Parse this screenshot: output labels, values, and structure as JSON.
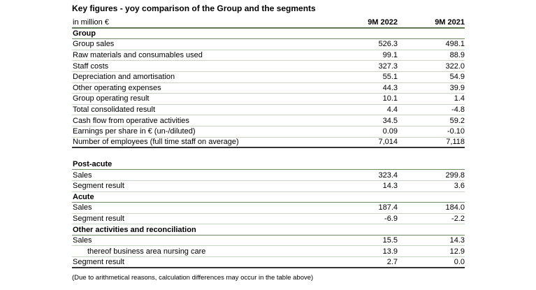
{
  "title": "Key figures - yoy comparison of the Group and the segments",
  "header": {
    "label": "in million €",
    "col1": "9M 2022",
    "col2": "9M 2021"
  },
  "group": {
    "heading": "Group",
    "rows": [
      {
        "label": "Group sales",
        "v1": "526.3",
        "v2": "498.1"
      },
      {
        "label": "Raw materials and consumables used",
        "v1": "99.1",
        "v2": "88.9"
      },
      {
        "label": "Staff costs",
        "v1": "327.3",
        "v2": "322.0"
      },
      {
        "label": "Depreciation and amortisation",
        "v1": "55.1",
        "v2": "54.9"
      },
      {
        "label": "Other operating expenses",
        "v1": "44.3",
        "v2": "39.9"
      },
      {
        "label": "Group operating result",
        "v1": "10.1",
        "v2": "1.4"
      },
      {
        "label": "Total consolidated result",
        "v1": "4.4",
        "v2": "-4.8"
      },
      {
        "label": "Cash flow from operative activities",
        "v1": "34.5",
        "v2": "59.2"
      },
      {
        "label": "Earnings per share in € (un-/diluted)",
        "v1": "0.09",
        "v2": "-0.10"
      },
      {
        "label": "Number of employees  (full time staff on average)",
        "v1": "7,014",
        "v2": "7,118"
      }
    ]
  },
  "post_acute": {
    "heading": "Post-acute",
    "rows": [
      {
        "label": "Sales",
        "v1": "323.4",
        "v2": "299.8"
      },
      {
        "label": "Segment result",
        "v1": "14.3",
        "v2": "3.6"
      }
    ]
  },
  "acute": {
    "heading": "Acute",
    "rows": [
      {
        "label": "Sales",
        "v1": "187.4",
        "v2": "184.0"
      },
      {
        "label": "Segment result",
        "v1": "-6.9",
        "v2": "-2.2"
      }
    ]
  },
  "other": {
    "heading": "Other activities and reconciliation",
    "rows": [
      {
        "label": "Sales",
        "v1": "15.5",
        "v2": "14.3"
      },
      {
        "label": "thereof business area nursing care",
        "v1": "13.9",
        "v2": "12.9"
      },
      {
        "label": "Segment result",
        "v1": "2.7",
        "v2": "0.0"
      }
    ]
  },
  "note": "(Due to arithmetical reasons, calculation differences may occur in the table above)"
}
